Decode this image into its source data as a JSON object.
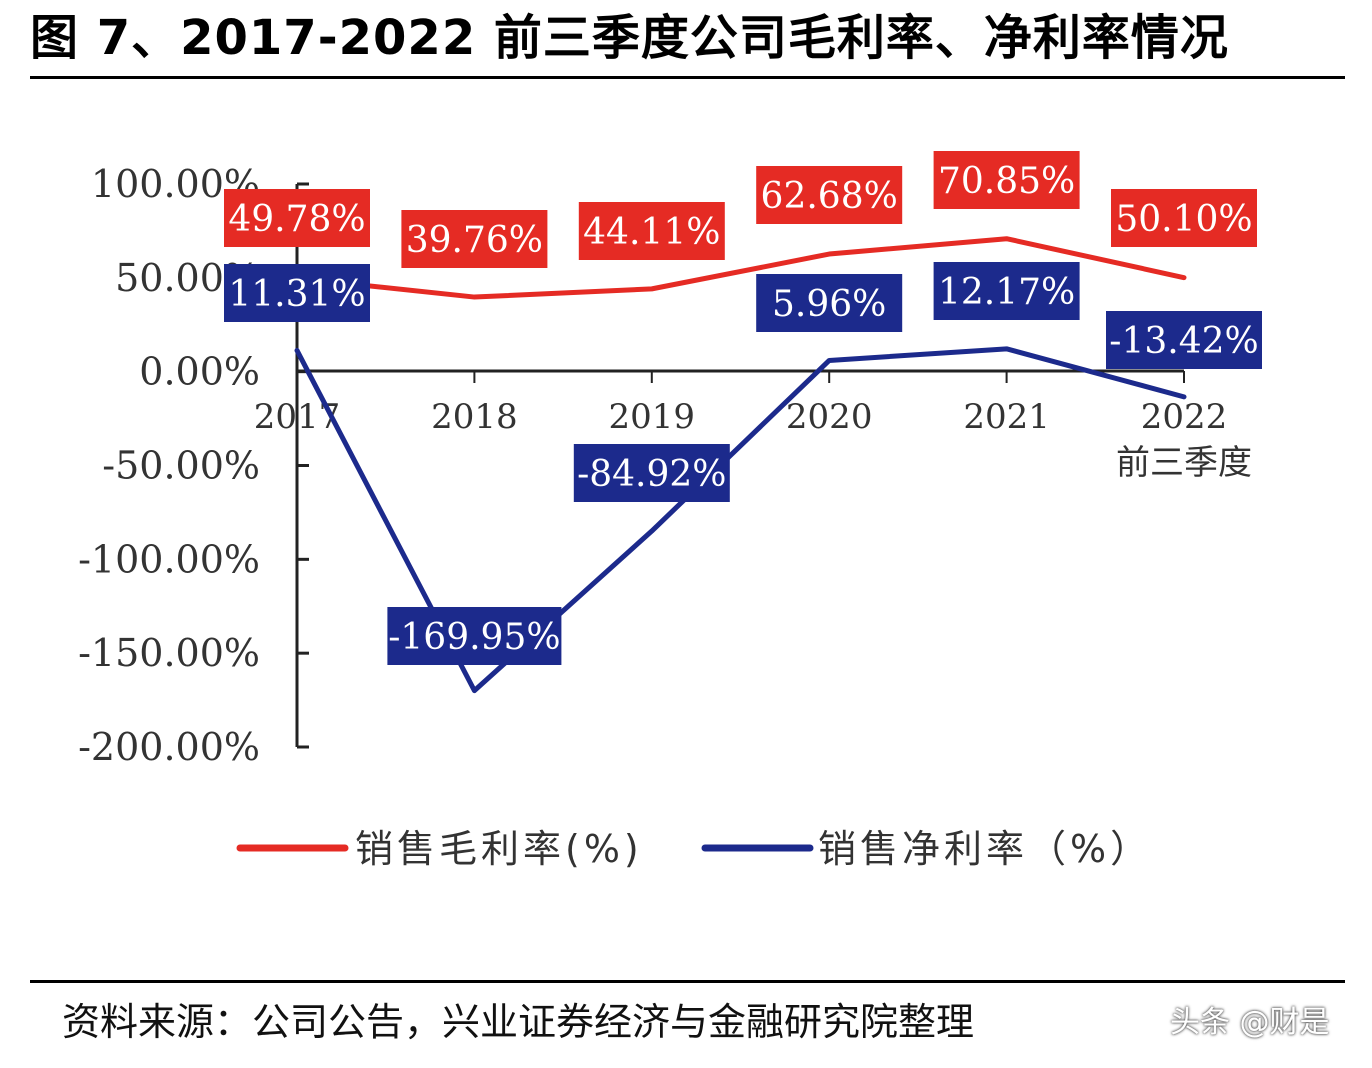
{
  "title": "图 7、2017-2022 前三季度公司毛利率、净利率情况",
  "source": "资料来源：公司公告，兴业证券经济与金融研究院整理",
  "watermark": "头条 @财是",
  "colors": {
    "gross": "#e52b24",
    "net": "#1c2a8c",
    "axis": "#222222"
  },
  "chart_data": {
    "type": "line",
    "categories": [
      "2017",
      "2018",
      "2019",
      "2020",
      "2021",
      "2022\n前三季度"
    ],
    "series": [
      {
        "name": "销售毛利率(%)",
        "values": [
          49.78,
          39.76,
          44.11,
          62.68,
          70.85,
          50.1
        ],
        "labels": [
          "49.78%",
          "39.76%",
          "44.11%",
          "62.68%",
          "70.85%",
          "50.10%"
        ]
      },
      {
        "name": "销售净利率（%）",
        "values": [
          11.31,
          -169.95,
          -84.92,
          5.96,
          12.17,
          -13.42
        ],
        "labels": [
          "11.31%",
          "-169.95%",
          "-84.92%",
          "5.96%",
          "12.17%",
          "-13.42%"
        ]
      }
    ],
    "yticks": [
      "100.00%",
      "50.00%",
      "0.00%",
      "-50.00%",
      "-100.00%",
      "-150.00%",
      "-200.00%"
    ],
    "ylim": [
      -200,
      100
    ],
    "legend_position": "bottom",
    "grid": false
  }
}
